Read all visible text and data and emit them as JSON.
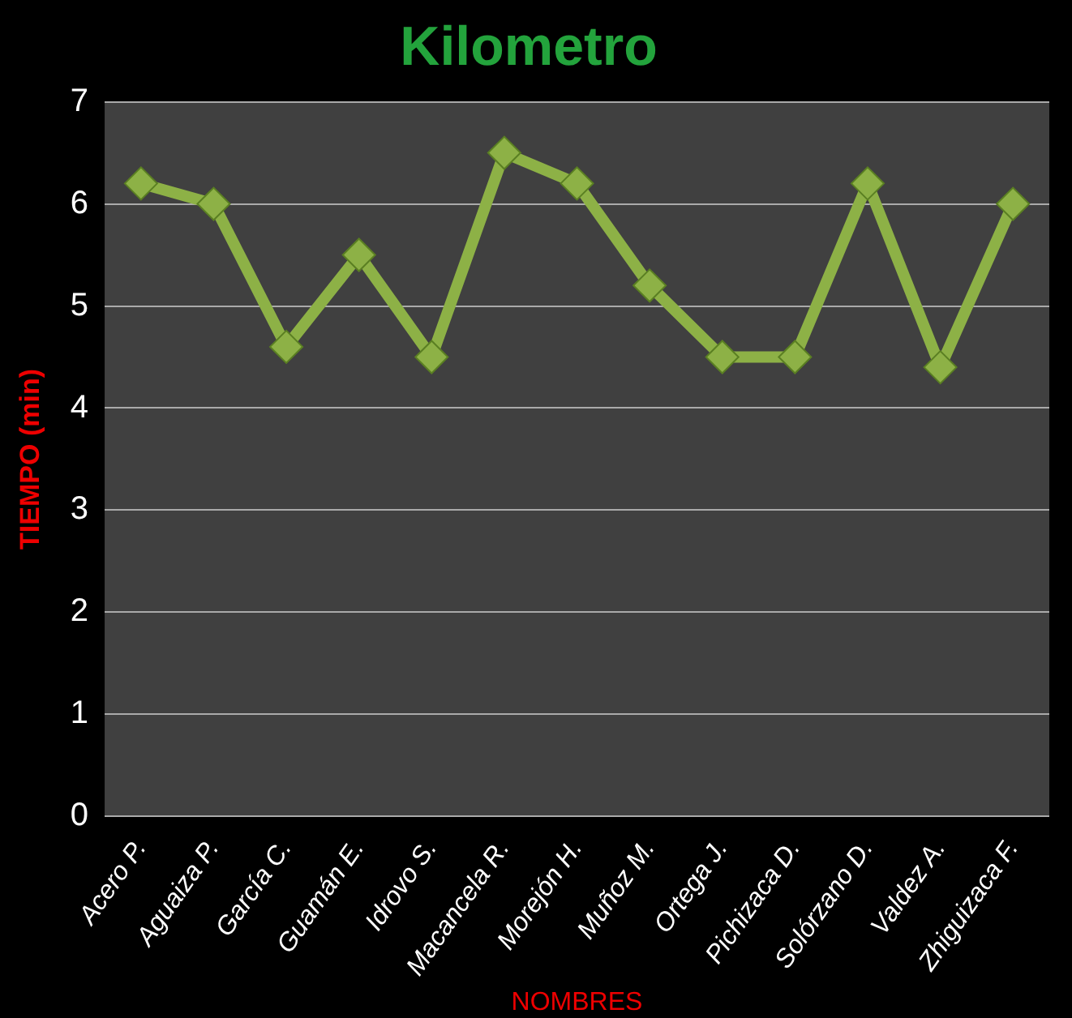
{
  "chart_data": {
    "type": "line",
    "title": "Kilometro",
    "xlabel": "NOMBRES",
    "ylabel": "TIEMPO (min)",
    "categories": [
      "Acero P.",
      "Aguaiza P.",
      "García C.",
      "Guamán E.",
      "Idrovo S.",
      "Macancela R.",
      "Morejón H.",
      "Muñoz M.",
      "Ortega J.",
      "Pichizaca D.",
      "Solórzano D.",
      "Valdez A.",
      "Zhiguizaca F."
    ],
    "series": [
      {
        "color": "#8db146",
        "values": [
          6.2,
          6.0,
          4.6,
          5.5,
          4.5,
          6.5,
          6.2,
          5.2,
          4.5,
          4.5,
          6.2,
          4.4,
          6.0
        ]
      }
    ],
    "ylim": [
      0,
      7
    ],
    "yticks": [
      0,
      1,
      2,
      3,
      4,
      5,
      6,
      7
    ],
    "grid": "y",
    "legend": false,
    "marker": "diamond",
    "line_style": "solid"
  }
}
